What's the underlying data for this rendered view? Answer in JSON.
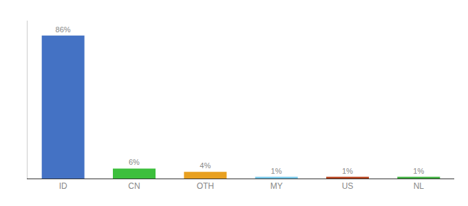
{
  "chart_data": {
    "type": "bar",
    "categories": [
      "ID",
      "CN",
      "OTH",
      "MY",
      "US",
      "NL"
    ],
    "values": [
      86,
      6,
      4,
      1,
      1,
      1
    ],
    "value_labels": [
      "86%",
      "6%",
      "4%",
      "1%",
      "1%",
      "1%"
    ],
    "data_labels": true,
    "colors": [
      "#4472c4",
      "#3dbf3d",
      "#e8a020",
      "#74c6e8",
      "#b5401a",
      "#3daf3d"
    ],
    "ylim": [
      0,
      95
    ],
    "grid": false,
    "tick_labels": "x"
  }
}
